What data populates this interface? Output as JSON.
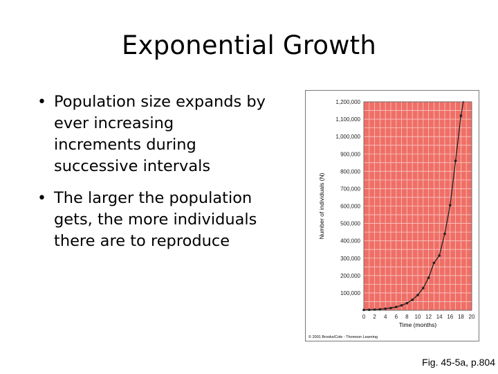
{
  "title": "Exponential Growth",
  "bullets": [
    "Population size expands by ever increasing increments during successive intervals",
    "The larger the population gets, the more individuals there are to reproduce"
  ],
  "caption": "Fig. 45-5a, p.804",
  "chart_data": {
    "type": "line",
    "xlabel": "Time (months)",
    "ylabel": "Number of individuals (N)",
    "xlim": [
      0,
      20
    ],
    "ylim": [
      0,
      1200000
    ],
    "x_ticks": [
      "0",
      "2",
      "4",
      "6",
      "8",
      "10",
      "12",
      "14",
      "16",
      "18",
      "20"
    ],
    "y_ticks": [
      "100,000",
      "200,000",
      "300,000",
      "400,000",
      "500,000",
      "600,000",
      "700,000",
      "800,000",
      "900,000",
      "1,000,000",
      "1,100,000",
      "1,200,000"
    ],
    "grid": true,
    "plot_background": "#ef6f67",
    "grid_color": "#f8c9c4",
    "line_color": "#222222",
    "x": [
      0,
      1,
      2,
      3,
      4,
      5,
      6,
      7,
      8,
      9,
      10,
      11,
      12,
      13,
      14,
      15,
      16,
      17,
      18,
      19
    ],
    "values": [
      2000,
      3000,
      4000,
      6000,
      9000,
      13000,
      19000,
      28000,
      41000,
      60000,
      88000,
      128000,
      187000,
      273000,
      315000,
      440000,
      605000,
      860000,
      1120000,
      1300000
    ],
    "copyright": "© 2001 Brooks/Cole - Thomson Learning"
  }
}
